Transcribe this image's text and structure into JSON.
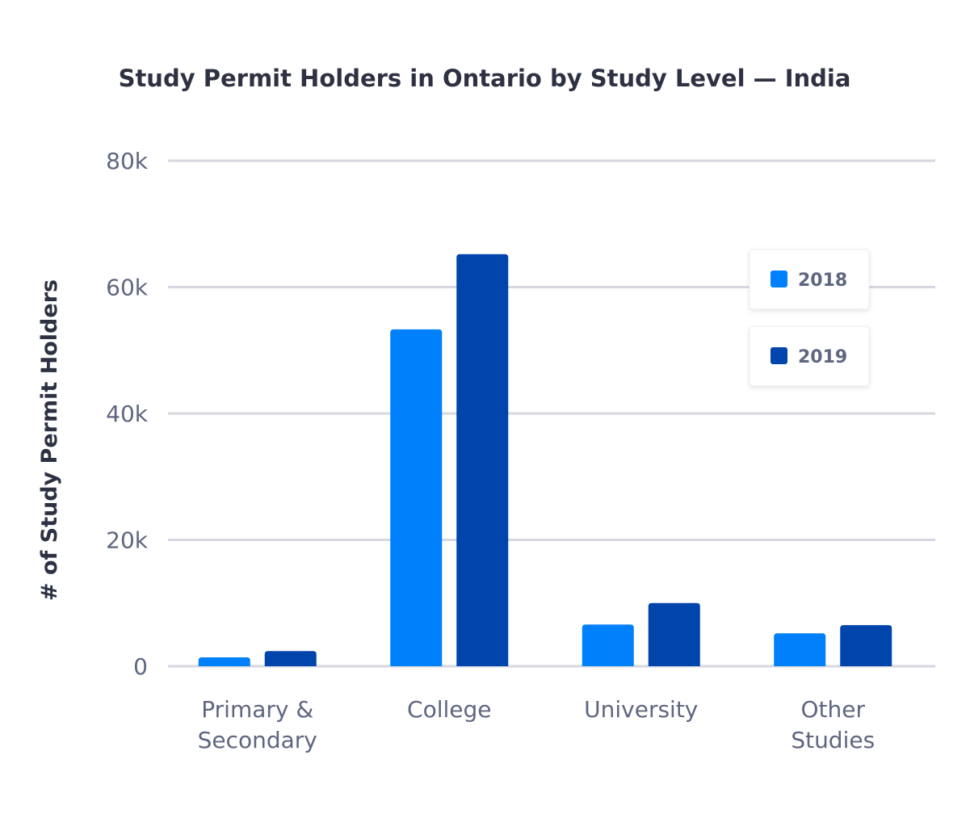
{
  "chart_data": {
    "type": "bar",
    "title": "Study Permit Holders in Ontario by Study Level — India",
    "xlabel": "",
    "ylabel": "# of Study Permit Holders",
    "ylim": [
      0,
      80000
    ],
    "yticks": [
      0,
      20000,
      40000,
      60000,
      80000
    ],
    "ytick_labels": [
      "0",
      "20k",
      "40k",
      "60k",
      "80k"
    ],
    "grid": true,
    "legend_placement": "top-right",
    "categories": [
      [
        "Primary &",
        "Secondary"
      ],
      [
        "College"
      ],
      [
        "University"
      ],
      [
        "Other",
        "Studies"
      ]
    ],
    "series": [
      {
        "name": "2018",
        "color": "#0080fb",
        "values": [
          1400,
          53300,
          6600,
          5200
        ]
      },
      {
        "name": "2019",
        "color": "#0045ac",
        "values": [
          2400,
          65200,
          10000,
          6500
        ]
      }
    ]
  }
}
